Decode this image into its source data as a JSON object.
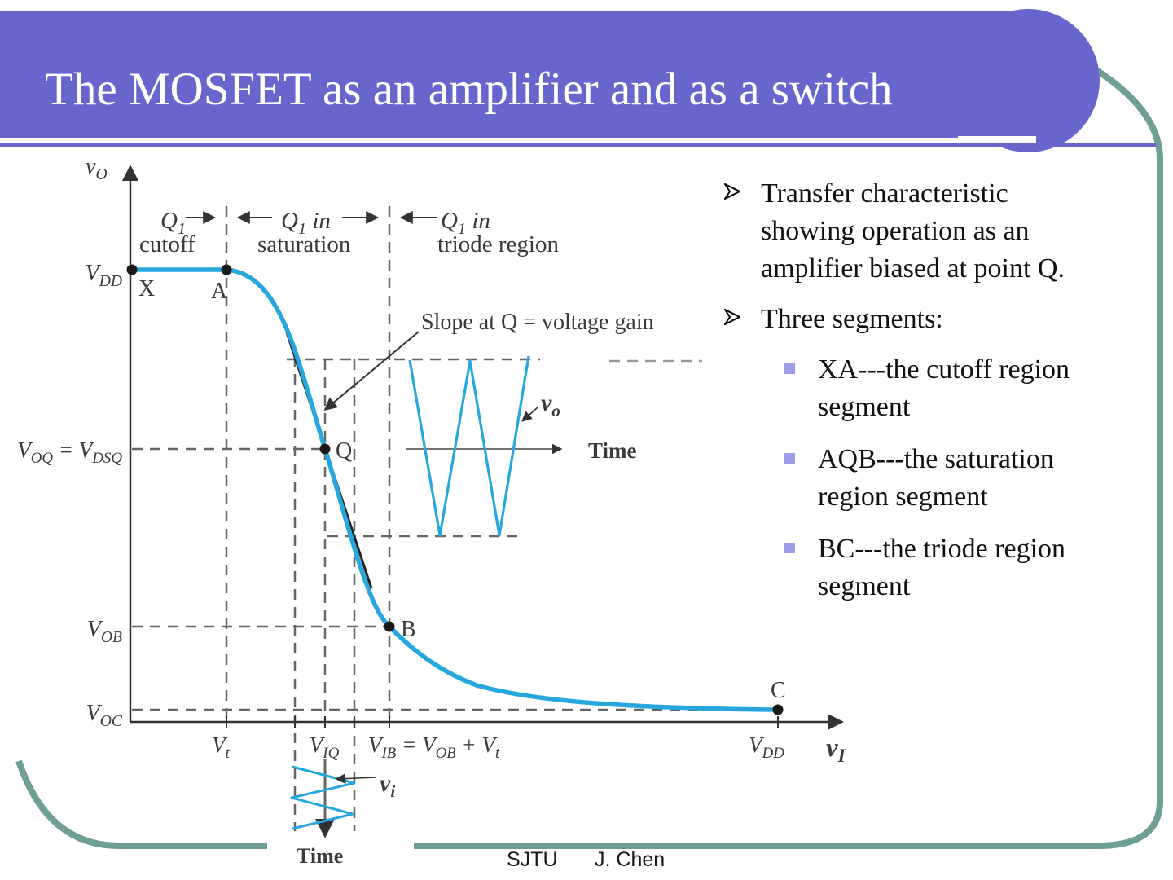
{
  "title": "The MOSFET as an amplifier and as a switch",
  "bullets": [
    {
      "level": 1,
      "text": "Transfer characteristic showing operation as an amplifier biased at point Q."
    },
    {
      "level": 1,
      "text": "Three segments:"
    },
    {
      "level": 2,
      "text": "XA---the cutoff region segment"
    },
    {
      "level": 2,
      "text": "AQB---the saturation region segment"
    },
    {
      "level": 2,
      "text": "BC---the triode region segment"
    }
  ],
  "footer": {
    "org": "SJTU",
    "author": "J. Chen"
  },
  "figure": {
    "y_axis_label": "v_{O}",
    "x_axis_label": "v_{I}",
    "y_ticks": {
      "vdd": "V_{DD}",
      "voq": "V_{OQ} = V_{DSQ}",
      "vob": "V_{OB}",
      "voc": "V_{OC}"
    },
    "x_ticks": {
      "vt": "V_{t}",
      "viq": "V_{IQ}",
      "vib": "V_{IB} = V_{OB} + V_{t}",
      "vdd": "V_{DD}"
    },
    "regions": {
      "r1_top": "Q_{1}",
      "r1_bottom": "cutoff",
      "r2_top": "Q_{1} in",
      "r2_bottom": "saturation",
      "r3_top": "Q_{1} in",
      "r3_bottom": "triode region"
    },
    "slope_note": "Slope at Q = voltage gain",
    "points": {
      "x": "X",
      "a": "A",
      "q": "Q",
      "b": "B",
      "c": "C"
    },
    "waves": {
      "vo_label": "v_{o}",
      "vi_label": "v_{i}",
      "time_out": "Time",
      "time_in": "Time"
    }
  },
  "colors": {
    "accent_purple": "#6666cc",
    "frame_teal": "#6f9e95",
    "curve_cyan": "#27a7dd",
    "bullet_square": "#9d9de8"
  }
}
